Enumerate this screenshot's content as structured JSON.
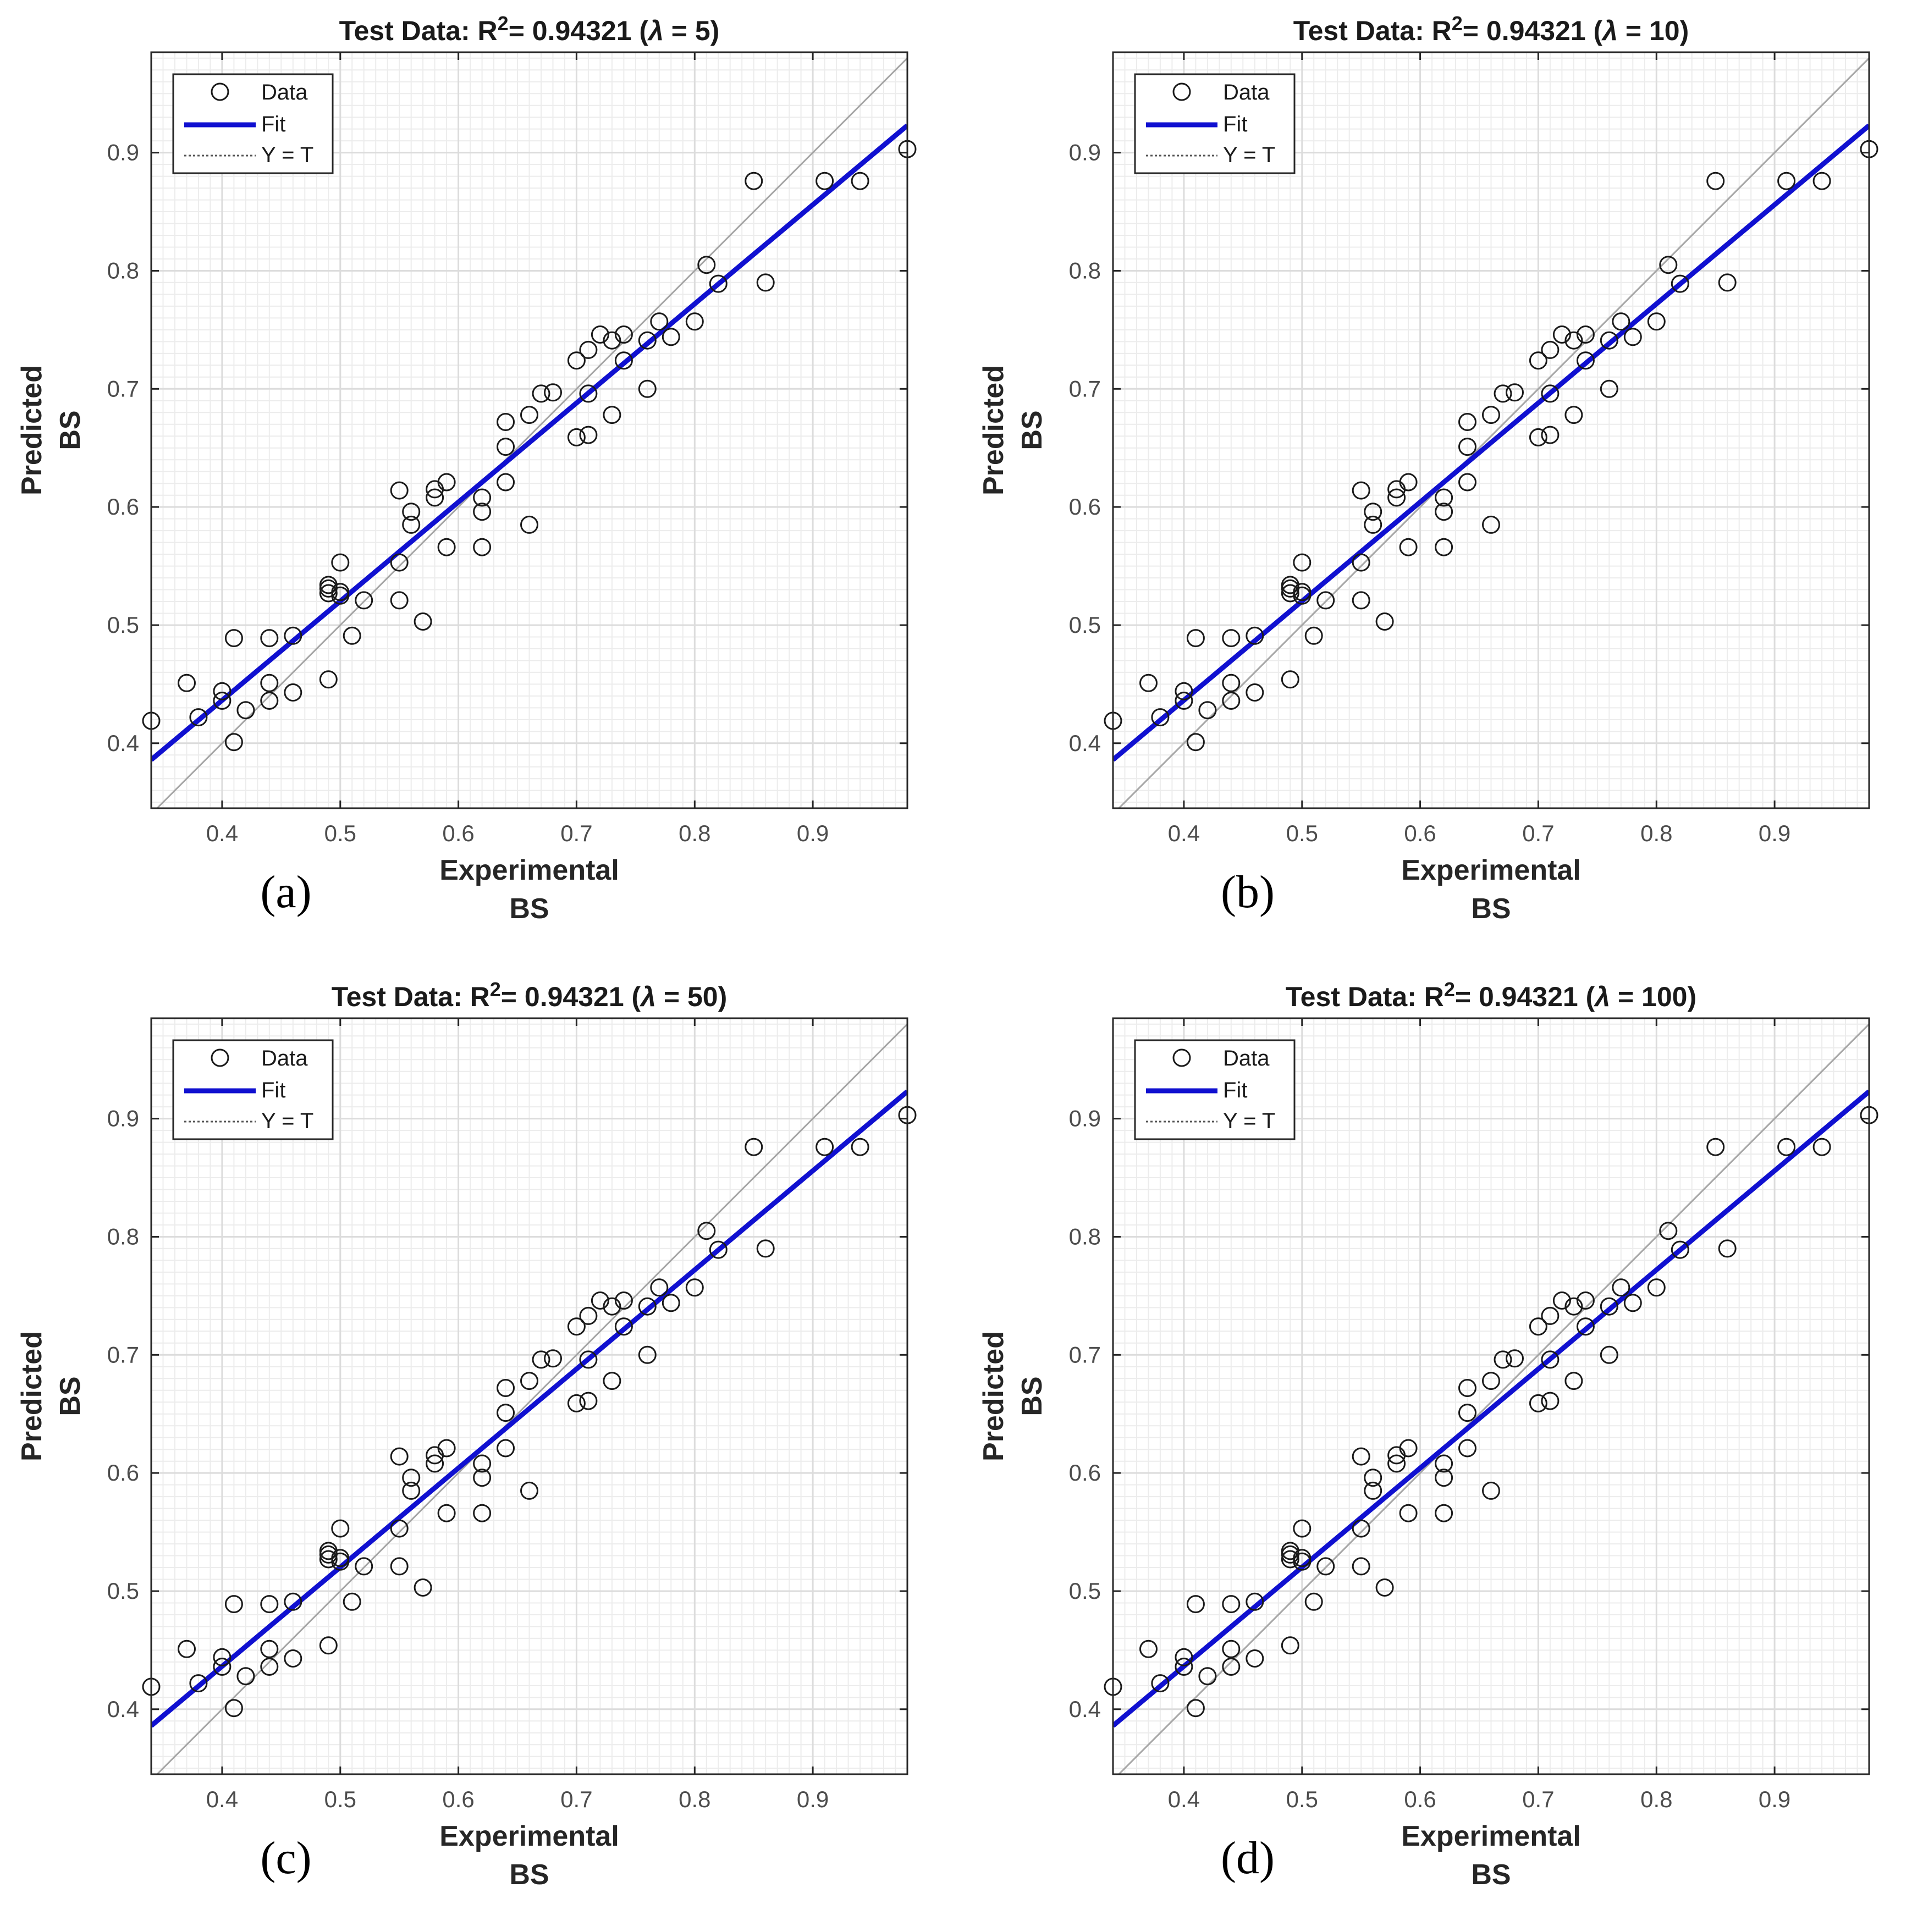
{
  "chart_data": [
    {
      "type": "scatter",
      "panel_label": "(a)",
      "title_prefix": "Test Data: R",
      "title_sup": "2",
      "title_suffix": "= 0.94321 (",
      "title_lambda": "λ",
      "title_param": " = 5)",
      "xlabel": "Experimental",
      "xlabel2": "BS",
      "ylabel": "Predicted",
      "ylabel2": "BS"
    },
    {
      "type": "scatter",
      "panel_label": "(b)",
      "title_prefix": "Test Data: R",
      "title_sup": "2",
      "title_suffix": "= 0.94321 (",
      "title_lambda": "λ",
      "title_param": " = 10)",
      "xlabel": "Experimental",
      "xlabel2": "BS",
      "ylabel": "Predicted",
      "ylabel2": "BS"
    },
    {
      "type": "scatter",
      "panel_label": "(c)",
      "title_prefix": "Test Data: R",
      "title_sup": "2",
      "title_suffix": "= 0.94321 (",
      "title_lambda": "λ",
      "title_param": " = 50)",
      "xlabel": "Experimental",
      "xlabel2": "BS",
      "ylabel": "Predicted",
      "ylabel2": "BS"
    },
    {
      "type": "scatter",
      "panel_label": "(d)",
      "title_prefix": "Test Data: R",
      "title_sup": "2",
      "title_suffix": "= 0.94321 (",
      "title_lambda": "λ",
      "title_param": " = 100)",
      "xlabel": "Experimental",
      "xlabel2": "BS",
      "ylabel": "Predicted",
      "ylabel2": "BS"
    }
  ],
  "shared": {
    "xlim": [
      0.34,
      0.98
    ],
    "ylim": [
      0.345,
      0.985
    ],
    "xticks": [
      0.4,
      0.5,
      0.6,
      0.7,
      0.8,
      0.9
    ],
    "yticks": [
      0.4,
      0.5,
      0.6,
      0.7,
      0.8,
      0.9
    ],
    "xtick_labels": [
      "0.4",
      "0.5",
      "0.6",
      "0.7",
      "0.8",
      "0.9"
    ],
    "ytick_labels": [
      "0.4",
      "0.5",
      "0.6",
      "0.7",
      "0.8",
      "0.9"
    ],
    "grid": true,
    "minor_grid": true,
    "legend_position": "top-left",
    "legend": [
      {
        "name": "Data",
        "style": "circle-marker"
      },
      {
        "name": "Fit",
        "style": "solid-line"
      },
      {
        "name": "Y = T",
        "style": "dotted-line"
      }
    ],
    "fit_line": {
      "x": [
        0.34,
        0.98
      ],
      "y": [
        0.386,
        0.923
      ]
    },
    "identity_line": {
      "x": [
        0.34,
        0.98
      ],
      "y": [
        0.34,
        0.98
      ]
    },
    "points": [
      [
        0.34,
        0.419
      ],
      [
        0.37,
        0.451
      ],
      [
        0.38,
        0.422
      ],
      [
        0.4,
        0.444
      ],
      [
        0.4,
        0.436
      ],
      [
        0.41,
        0.401
      ],
      [
        0.41,
        0.489
      ],
      [
        0.42,
        0.428
      ],
      [
        0.44,
        0.489
      ],
      [
        0.44,
        0.451
      ],
      [
        0.44,
        0.436
      ],
      [
        0.46,
        0.491
      ],
      [
        0.46,
        0.443
      ],
      [
        0.49,
        0.534
      ],
      [
        0.49,
        0.531
      ],
      [
        0.49,
        0.527
      ],
      [
        0.49,
        0.454
      ],
      [
        0.5,
        0.553
      ],
      [
        0.5,
        0.528
      ],
      [
        0.5,
        0.525
      ],
      [
        0.51,
        0.491
      ],
      [
        0.52,
        0.521
      ],
      [
        0.55,
        0.614
      ],
      [
        0.55,
        0.553
      ],
      [
        0.55,
        0.521
      ],
      [
        0.56,
        0.596
      ],
      [
        0.56,
        0.585
      ],
      [
        0.57,
        0.503
      ],
      [
        0.58,
        0.615
      ],
      [
        0.58,
        0.608
      ],
      [
        0.59,
        0.621
      ],
      [
        0.59,
        0.566
      ],
      [
        0.62,
        0.608
      ],
      [
        0.62,
        0.596
      ],
      [
        0.62,
        0.566
      ],
      [
        0.64,
        0.672
      ],
      [
        0.64,
        0.651
      ],
      [
        0.64,
        0.621
      ],
      [
        0.66,
        0.678
      ],
      [
        0.66,
        0.585
      ],
      [
        0.67,
        0.696
      ],
      [
        0.68,
        0.697
      ],
      [
        0.7,
        0.724
      ],
      [
        0.7,
        0.659
      ],
      [
        0.71,
        0.733
      ],
      [
        0.71,
        0.696
      ],
      [
        0.71,
        0.661
      ],
      [
        0.72,
        0.746
      ],
      [
        0.73,
        0.741
      ],
      [
        0.73,
        0.678
      ],
      [
        0.74,
        0.746
      ],
      [
        0.74,
        0.724
      ],
      [
        0.76,
        0.741
      ],
      [
        0.76,
        0.7
      ],
      [
        0.77,
        0.757
      ],
      [
        0.78,
        0.744
      ],
      [
        0.8,
        0.757
      ],
      [
        0.81,
        0.805
      ],
      [
        0.82,
        0.789
      ],
      [
        0.85,
        0.876
      ],
      [
        0.86,
        0.79
      ],
      [
        0.91,
        0.876
      ],
      [
        0.94,
        0.876
      ],
      [
        0.98,
        0.903
      ]
    ],
    "colors": {
      "fit": "#1010d0",
      "identity": "#a6a6a6",
      "marker": "#1a1a1a",
      "grid": "#dcdcdc",
      "minor_grid": "#ececec",
      "axes": "#262626"
    }
  }
}
